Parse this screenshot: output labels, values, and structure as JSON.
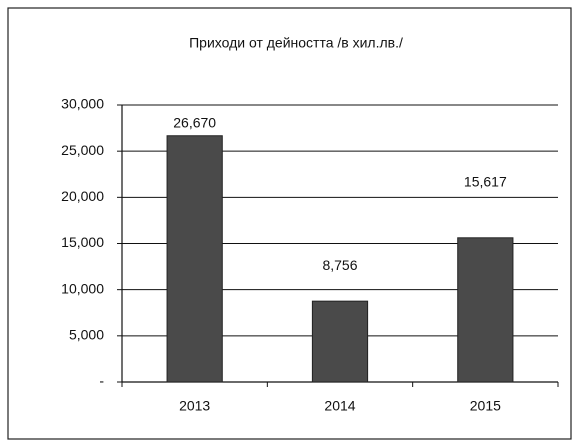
{
  "chart_data": {
    "type": "bar",
    "title": "Приходи от дейността /в хил.лв./",
    "categories": [
      "2013",
      "2014",
      "2015"
    ],
    "values": [
      26670,
      8756,
      15617
    ],
    "value_labels": [
      "26,670",
      "8,756",
      "15,617"
    ],
    "color": "#4a4a4a",
    "ylim": [
      0,
      30000
    ],
    "yticks": [
      {
        "value": 0,
        "label": "-"
      },
      {
        "value": 5000,
        "label": "5,000"
      },
      {
        "value": 10000,
        "label": "10,000"
      },
      {
        "value": 15000,
        "label": "15,000"
      },
      {
        "value": 20000,
        "label": "20,000"
      },
      {
        "value": 25000,
        "label": "25,000"
      },
      {
        "value": 30000,
        "label": "30,000"
      }
    ],
    "grid": true
  }
}
